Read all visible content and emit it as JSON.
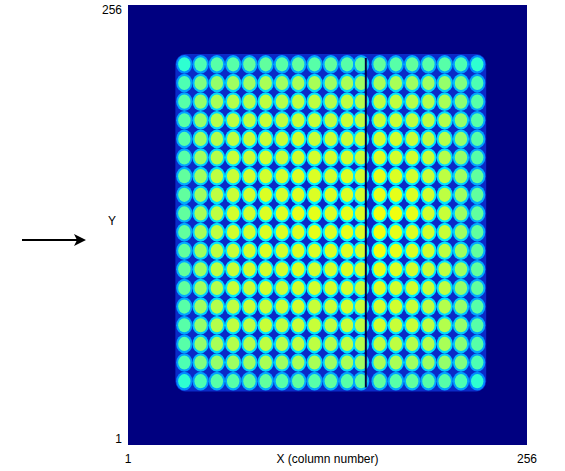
{
  "chart_data": {
    "type": "heatmap",
    "xlabel": "X (column number)",
    "ylabel": "Y",
    "xlim": [
      1,
      256
    ],
    "ylim": [
      1,
      256
    ],
    "xticks": [
      1,
      256
    ],
    "yticks": [
      1,
      256
    ],
    "clim": [
      0,
      100
    ],
    "gap_column": 153,
    "x": [
      37,
      47.4,
      57.8,
      68.2,
      78.6,
      89,
      99.4,
      109.8,
      120.2,
      130.6,
      141,
      150,
      161.8,
      172.2,
      182.6,
      193,
      203.4,
      213.8,
      224.2
    ],
    "y": [
      38,
      48.8,
      59.6,
      70.4,
      81.2,
      92,
      102.8,
      113.6,
      124.4,
      135.2,
      146,
      156.8,
      167.6,
      178.4,
      189.2,
      200,
      210.8,
      221.6
    ],
    "cells": [
      [
        42,
        45,
        46,
        46,
        47,
        47,
        46,
        47,
        46,
        47,
        46,
        47,
        47,
        46,
        47,
        46,
        46,
        45,
        42
      ],
      [
        45,
        50,
        52,
        53,
        53,
        54,
        53,
        54,
        54,
        53,
        54,
        53,
        54,
        54,
        53,
        53,
        52,
        50,
        45
      ],
      [
        46,
        52,
        54,
        55,
        55,
        56,
        55,
        56,
        56,
        55,
        56,
        55,
        56,
        56,
        55,
        55,
        54,
        51,
        46
      ],
      [
        46,
        52,
        55,
        56,
        56,
        57,
        56,
        57,
        57,
        56,
        57,
        56,
        58,
        57,
        57,
        56,
        55,
        52,
        46
      ],
      [
        46,
        53,
        55,
        56,
        57,
        57,
        57,
        58,
        57,
        57,
        58,
        57,
        58,
        58,
        57,
        56,
        55,
        52,
        46
      ],
      [
        47,
        53,
        55,
        57,
        57,
        58,
        57,
        58,
        58,
        58,
        58,
        57,
        59,
        58,
        58,
        57,
        56,
        52,
        47
      ],
      [
        47,
        53,
        56,
        57,
        58,
        58,
        58,
        59,
        58,
        58,
        59,
        58,
        60,
        59,
        58,
        57,
        56,
        53,
        47
      ],
      [
        47,
        53,
        56,
        57,
        58,
        59,
        58,
        59,
        59,
        59,
        59,
        58,
        61,
        60,
        59,
        58,
        56,
        53,
        47
      ],
      [
        47,
        54,
        56,
        58,
        58,
        59,
        59,
        59,
        60,
        59,
        60,
        59,
        61,
        60,
        59,
        58,
        57,
        53,
        47
      ],
      [
        47,
        54,
        56,
        58,
        58,
        59,
        59,
        60,
        60,
        59,
        60,
        59,
        61,
        61,
        60,
        58,
        57,
        53,
        47
      ],
      [
        47,
        53,
        56,
        57,
        58,
        59,
        58,
        59,
        59,
        59,
        59,
        58,
        60,
        60,
        59,
        58,
        56,
        53,
        47
      ],
      [
        47,
        53,
        56,
        57,
        58,
        58,
        58,
        59,
        59,
        58,
        59,
        58,
        60,
        59,
        58,
        57,
        56,
        53,
        47
      ],
      [
        46,
        53,
        55,
        57,
        57,
        58,
        57,
        58,
        58,
        58,
        58,
        57,
        59,
        58,
        58,
        57,
        55,
        52,
        46
      ],
      [
        46,
        53,
        55,
        56,
        57,
        57,
        57,
        58,
        57,
        57,
        57,
        57,
        58,
        58,
        57,
        56,
        55,
        52,
        46
      ],
      [
        46,
        52,
        55,
        56,
        56,
        57,
        56,
        57,
        57,
        56,
        57,
        56,
        57,
        57,
        56,
        56,
        55,
        52,
        46
      ],
      [
        46,
        52,
        54,
        55,
        55,
        56,
        55,
        56,
        56,
        55,
        56,
        55,
        56,
        56,
        55,
        55,
        54,
        51,
        46
      ],
      [
        45,
        50,
        52,
        53,
        53,
        54,
        53,
        54,
        54,
        53,
        54,
        53,
        54,
        54,
        53,
        53,
        52,
        50,
        45
      ],
      [
        42,
        45,
        46,
        46,
        47,
        47,
        46,
        47,
        46,
        47,
        46,
        47,
        47,
        46,
        47,
        46,
        46,
        45,
        42
      ]
    ]
  }
}
